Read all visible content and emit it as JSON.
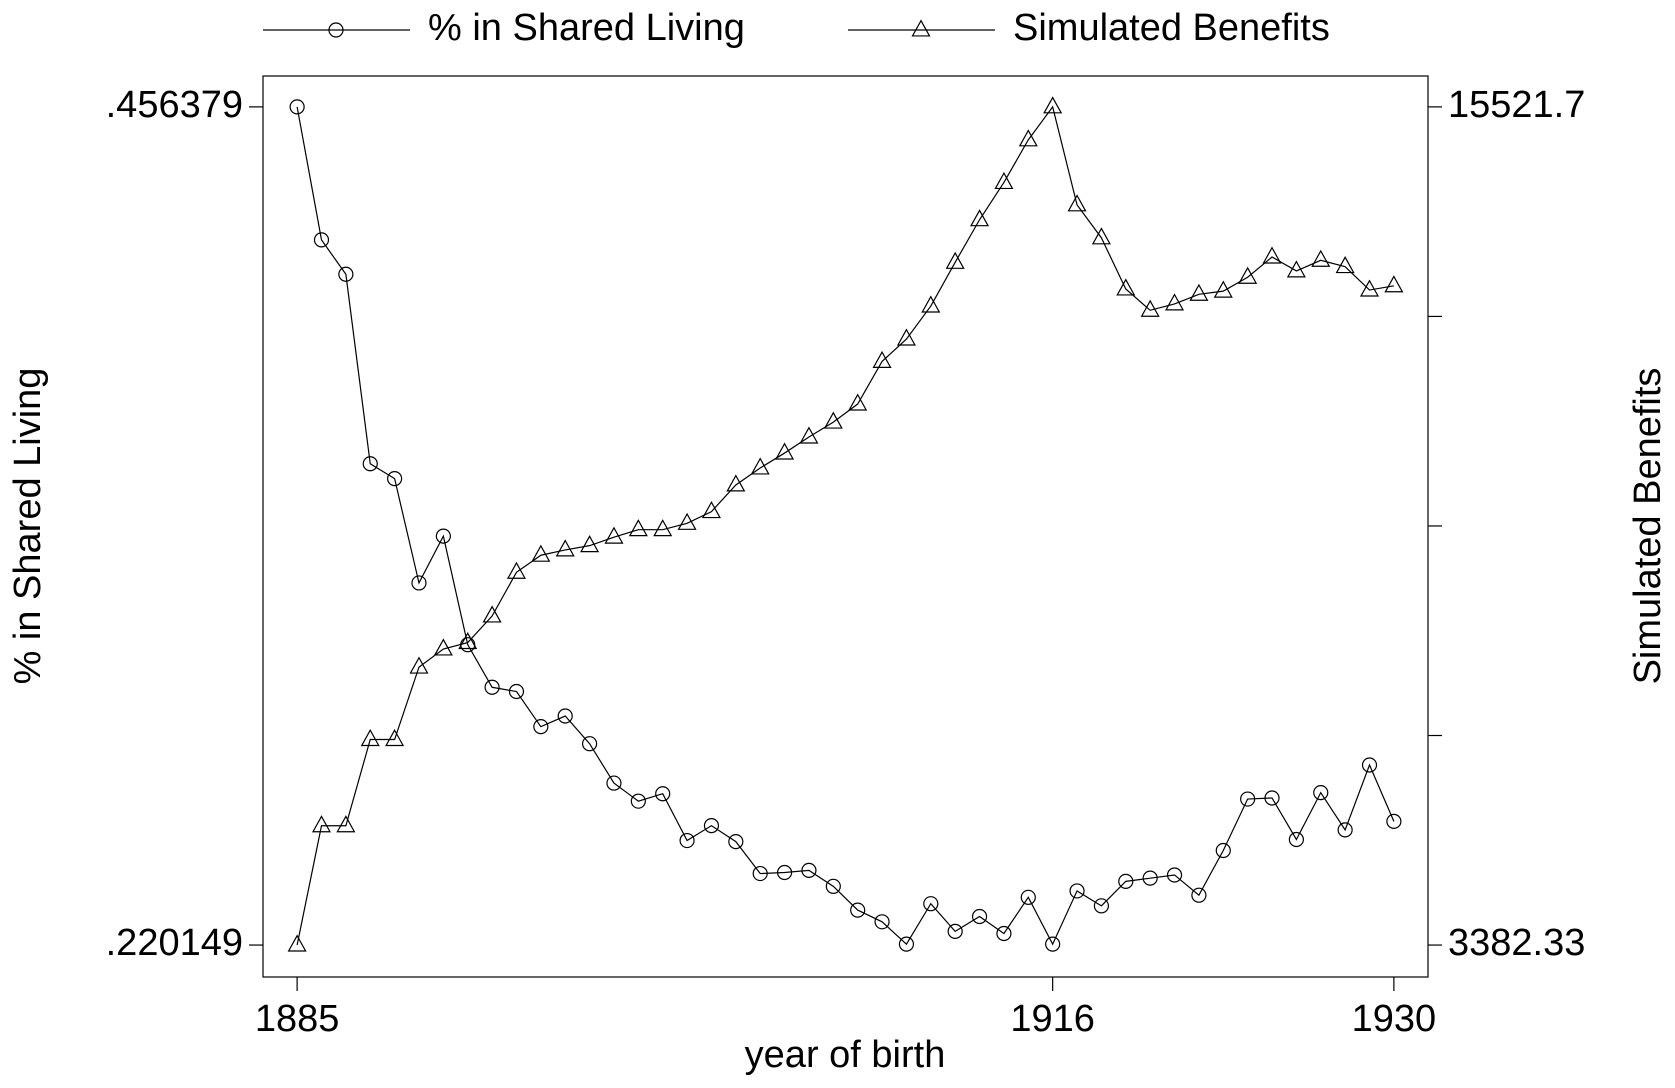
{
  "chart_data": {
    "type": "line",
    "x": [
      1885,
      1886,
      1887,
      1888,
      1889,
      1890,
      1891,
      1892,
      1893,
      1894,
      1895,
      1896,
      1897,
      1898,
      1899,
      1900,
      1901,
      1902,
      1903,
      1904,
      1905,
      1906,
      1907,
      1908,
      1909,
      1910,
      1911,
      1912,
      1913,
      1914,
      1915,
      1916,
      1917,
      1918,
      1919,
      1920,
      1921,
      1922,
      1923,
      1924,
      1925,
      1926,
      1927,
      1928,
      1929,
      1930
    ],
    "series": [
      {
        "name": "% in Shared Living",
        "color": "#000000",
        "marker": "circle",
        "values": [
          0.456379,
          0.4189,
          0.4092,
          0.3558,
          0.3516,
          0.3222,
          0.3354,
          0.3048,
          0.2928,
          0.2916,
          0.2817,
          0.2847,
          0.2769,
          0.2658,
          0.2607,
          0.2628,
          0.2496,
          0.2538,
          0.2493,
          0.2403,
          0.2406,
          0.2412,
          0.2367,
          0.23,
          0.2267,
          0.2204,
          0.2318,
          0.224,
          0.2282,
          0.2234,
          0.2336,
          0.2204,
          0.2354,
          0.2312,
          0.2381,
          0.239,
          0.2399,
          0.2342,
          0.2468,
          0.2613,
          0.2616,
          0.2499,
          0.2631,
          0.2526,
          0.2709,
          0.255
        ]
      },
      {
        "name": "Simulated Benefits",
        "color": "#000000",
        "marker": "triangle",
        "axis": "y2",
        "values": [
          3382.33,
          5110,
          5110,
          6359,
          6359,
          7408,
          7670,
          7763,
          8148,
          8781,
          9028,
          9105,
          9167,
          9290,
          9398,
          9398,
          9490,
          9660,
          10046,
          10292,
          10508,
          10740,
          10956,
          11218,
          11835,
          12159,
          12637,
          13270,
          13887,
          14427,
          15044,
          15521.7,
          14103,
          13625,
          12884,
          12576,
          12668,
          12807,
          12853,
          13054,
          13347,
          13146,
          13300,
          13208,
          12869,
          12930
        ]
      }
    ],
    "x_label": "year of birth",
    "y_label": "% in Shared Living",
    "y2_label": "Simulated Benefits",
    "xlim": [
      1883.6,
      1931.4
    ],
    "xticks": [
      1885,
      1916,
      1930
    ],
    "ylim": [
      0.211143,
      0.465084
    ],
    "yticks": [
      {
        "value": 0.220149,
        "label": ".220149"
      },
      {
        "value": 0.456379,
        "label": ".456379"
      }
    ],
    "y2lim": [
      2919.6,
      15969
    ],
    "y2ticks": [
      3382.33,
      15521.7
    ],
    "y2minor_ticks": [
      6417.1725,
      9452.015,
      12486.8575
    ],
    "legend": "top",
    "grid": false
  }
}
